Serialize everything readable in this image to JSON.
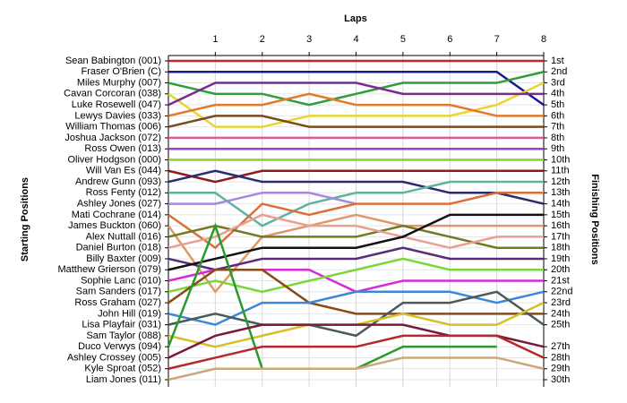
{
  "chart_data": {
    "type": "line",
    "x_label": "Laps",
    "y_label": "Starting Positions",
    "y2_label": "Finishing Positions",
    "x": [
      0,
      1,
      2,
      3,
      4,
      5,
      6,
      7,
      8
    ],
    "xlim": [
      0,
      8
    ],
    "xticks": [
      1,
      2,
      3,
      4,
      5,
      6,
      7,
      8
    ],
    "ylim": [
      1,
      30
    ],
    "inverted": true,
    "grid": true,
    "y2ticks": [
      {
        "value": 1,
        "label": "1st"
      },
      {
        "value": 2,
        "label": "2nd"
      },
      {
        "value": 3,
        "label": "3rd"
      },
      {
        "value": 4,
        "label": "4th"
      },
      {
        "value": 5,
        "label": "5th"
      },
      {
        "value": 6,
        "label": "6th"
      },
      {
        "value": 7,
        "label": "7th"
      },
      {
        "value": 8,
        "label": "8th"
      },
      {
        "value": 9,
        "label": "9th"
      },
      {
        "value": 10,
        "label": "10th"
      },
      {
        "value": 11,
        "label": "11th"
      },
      {
        "value": 12,
        "label": "12th"
      },
      {
        "value": 13,
        "label": "13th"
      },
      {
        "value": 14,
        "label": "14th"
      },
      {
        "value": 15,
        "label": "15th"
      },
      {
        "value": 16,
        "label": "16th"
      },
      {
        "value": 17,
        "label": "17th"
      },
      {
        "value": 18,
        "label": "18th"
      },
      {
        "value": 19,
        "label": "19th"
      },
      {
        "value": 20,
        "label": "20th"
      },
      {
        "value": 21,
        "label": "21st"
      },
      {
        "value": 22,
        "label": "22nd"
      },
      {
        "value": 23,
        "label": "23rd"
      },
      {
        "value": 24,
        "label": "24th"
      },
      {
        "value": 25,
        "label": "25th"
      },
      {
        "value": 27,
        "label": "27th"
      },
      {
        "value": 28,
        "label": "28th"
      },
      {
        "value": 29,
        "label": "29th"
      },
      {
        "value": 30,
        "label": "30th"
      }
    ],
    "series": [
      {
        "name": "Sean Babington (001)",
        "color": "#c0262c",
        "values": [
          1,
          1,
          1,
          1,
          1,
          1,
          1,
          1,
          1
        ]
      },
      {
        "name": "Fraser O'Brien (C)",
        "color": "#1a1a8c",
        "values": [
          2,
          2,
          2,
          2,
          2,
          2,
          2,
          2,
          5
        ]
      },
      {
        "name": "Miles Murphy (007)",
        "color": "#2e9e3a",
        "values": [
          3,
          4,
          4,
          5,
          4,
          3,
          3,
          3,
          2
        ]
      },
      {
        "name": "Cavan Corcoran (038)",
        "color": "#e8d630",
        "values": [
          4,
          7,
          7,
          6,
          6,
          6,
          6,
          5,
          3
        ]
      },
      {
        "name": "Luke Rosewell (047)",
        "color": "#7b2a8f",
        "values": [
          5,
          3,
          3,
          3,
          3,
          4,
          4,
          4,
          4
        ]
      },
      {
        "name": "Lewys Davies (033)",
        "color": "#e07b2a",
        "values": [
          6,
          5,
          5,
          4,
          5,
          5,
          5,
          6,
          6
        ]
      },
      {
        "name": "William Thomas (006)",
        "color": "#7a4a1e",
        "values": [
          7,
          6,
          6,
          7,
          7,
          7,
          7,
          7,
          7
        ]
      },
      {
        "name": "Joshua Jackson (072)",
        "color": "#e05a9a",
        "values": [
          8,
          8,
          8,
          8,
          8,
          8,
          8,
          8,
          8
        ]
      },
      {
        "name": "Ross Owen (013)",
        "color": "#9b3fc8",
        "values": [
          9,
          9,
          9,
          9,
          9,
          9,
          9,
          9,
          9
        ]
      },
      {
        "name": "Oliver Hodgson (000)",
        "color": "#8cd12a",
        "values": [
          10,
          10,
          10,
          10,
          10,
          10,
          10,
          10,
          10
        ]
      },
      {
        "name": "Will Van Es (044)",
        "color": "#8c1c1c",
        "values": [
          11,
          12,
          11,
          11,
          11,
          11,
          11,
          11,
          11
        ]
      },
      {
        "name": "Andrew Gunn (093)",
        "color": "#2a2a6e",
        "values": [
          12,
          11,
          12,
          12,
          12,
          12,
          13,
          13,
          14
        ]
      },
      {
        "name": "Ross Fenty (012)",
        "color": "#5fb3a0",
        "values": [
          13,
          13,
          16,
          14,
          13,
          13,
          12,
          12,
          12
        ]
      },
      {
        "name": "Ashley Jones (027)",
        "color": "#a68ad8",
        "values": [
          14,
          14,
          13,
          13,
          14,
          null,
          null,
          null,
          null
        ]
      },
      {
        "name": "Mati Cochrane (014)",
        "color": "#d9703a",
        "values": [
          15,
          18,
          14,
          15,
          14,
          14,
          14,
          13,
          13
        ]
      },
      {
        "name": "James Buckton (060)",
        "color": "#e0986a",
        "values": [
          16,
          22,
          17,
          16,
          15,
          16,
          16,
          16,
          16
        ]
      },
      {
        "name": "Alex Nuttall (016)",
        "color": "#707a20",
        "values": [
          17,
          16,
          17,
          17,
          17,
          16,
          17,
          18,
          18
        ]
      },
      {
        "name": "Daniel Burton (018)",
        "color": "#e8a090",
        "values": [
          18,
          17,
          15,
          16,
          16,
          17,
          18,
          17,
          17
        ]
      },
      {
        "name": "Billy Baxter (009)",
        "color": "#5a2a7a",
        "values": [
          19,
          20,
          19,
          19,
          19,
          18,
          19,
          19,
          19
        ]
      },
      {
        "name": "Matthew Grierson (079)",
        "color": "#111111",
        "values": [
          20,
          19,
          18,
          18,
          18,
          17,
          15,
          15,
          15
        ]
      },
      {
        "name": "Sophie Lanc (010)",
        "color": "#d62ad6",
        "values": [
          21,
          20,
          20,
          20,
          22,
          21,
          21,
          21,
          21
        ]
      },
      {
        "name": "Sam Sanders (017)",
        "color": "#7ad63a",
        "values": [
          22,
          21,
          22,
          21,
          20,
          19,
          20,
          20,
          20
        ]
      },
      {
        "name": "Ross Graham (027)",
        "color": "#8a4a14",
        "values": [
          23,
          20,
          20,
          23,
          24,
          24,
          24,
          24,
          24
        ]
      },
      {
        "name": "John Hill (019)",
        "color": "#3a88d8",
        "values": [
          24,
          25,
          23,
          23,
          22,
          22,
          22,
          23,
          22
        ]
      },
      {
        "name": "Lisa Playfair (031)",
        "color": "#4a5a5a",
        "values": [
          25,
          24,
          25,
          25,
          26,
          23,
          23,
          22,
          25
        ]
      },
      {
        "name": "Sam Taylor (088)",
        "color": "#d4c02a",
        "values": [
          26,
          27,
          26,
          25,
          25,
          24,
          25,
          25,
          23
        ]
      },
      {
        "name": "Duco Verwys (094)",
        "color": "#2a9a2a",
        "values": [
          27,
          16,
          29,
          29,
          29,
          27,
          27,
          27,
          null
        ]
      },
      {
        "name": "Ashley Crossey (005)",
        "color": "#7a1a3a",
        "values": [
          28,
          26,
          25,
          25,
          25,
          25,
          26,
          26,
          27
        ]
      },
      {
        "name": "Kyle Sproat (052)",
        "color": "#b4282c",
        "values": [
          29,
          28,
          27,
          27,
          27,
          26,
          26,
          26,
          28
        ]
      },
      {
        "name": "Liam Jones (011)",
        "color": "#c9a87a",
        "values": [
          30,
          29,
          29,
          29,
          29,
          28,
          28,
          28,
          29
        ]
      }
    ]
  }
}
